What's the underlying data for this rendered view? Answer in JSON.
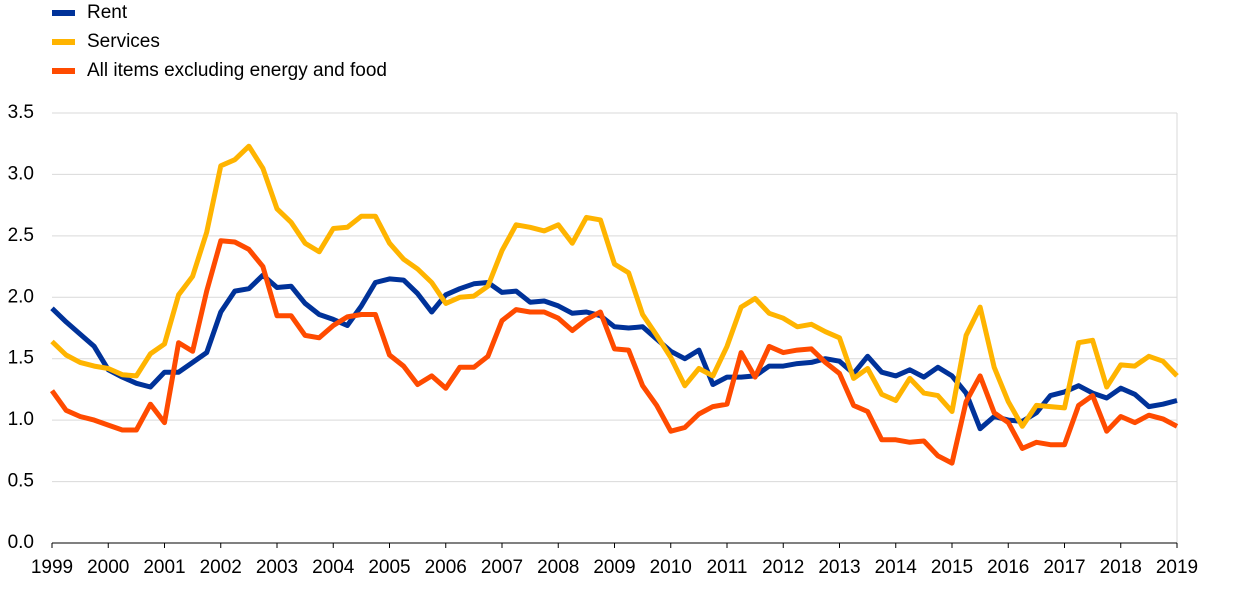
{
  "chart_data": {
    "type": "line",
    "x": [
      1999,
      1999.25,
      1999.5,
      1999.75,
      2000,
      2000.25,
      2000.5,
      2000.75,
      2001,
      2001.25,
      2001.5,
      2001.75,
      2002,
      2002.25,
      2002.5,
      2002.75,
      2003,
      2003.25,
      2003.5,
      2003.75,
      2004,
      2004.25,
      2004.5,
      2004.75,
      2005,
      2005.25,
      2005.5,
      2005.75,
      2006,
      2006.25,
      2006.5,
      2006.75,
      2007,
      2007.25,
      2007.5,
      2007.75,
      2008,
      2008.25,
      2008.5,
      2008.75,
      2009,
      2009.25,
      2009.5,
      2009.75,
      2010,
      2010.25,
      2010.5,
      2010.75,
      2011,
      2011.25,
      2011.5,
      2011.75,
      2012,
      2012.25,
      2012.5,
      2012.75,
      2013,
      2013.25,
      2013.5,
      2013.75,
      2014,
      2014.25,
      2014.5,
      2014.75,
      2015,
      2015.25,
      2015.5,
      2015.75,
      2016,
      2016.25,
      2016.5,
      2016.75,
      2017,
      2017.25,
      2017.5,
      2017.75,
      2018,
      2018.25,
      2018.5,
      2018.75,
      2019
    ],
    "series": [
      {
        "name": "Rent",
        "color": "#003299",
        "values": [
          1.91,
          1.8,
          1.7,
          1.6,
          1.41,
          1.35,
          1.3,
          1.27,
          1.39,
          1.39,
          1.47,
          1.55,
          1.88,
          2.05,
          2.07,
          2.18,
          2.08,
          2.09,
          1.95,
          1.86,
          1.82,
          1.77,
          1.93,
          2.12,
          2.15,
          2.14,
          2.03,
          1.88,
          2.02,
          2.07,
          2.11,
          2.12,
          2.04,
          2.05,
          1.96,
          1.97,
          1.93,
          1.87,
          1.88,
          1.85,
          1.76,
          1.75,
          1.76,
          1.66,
          1.56,
          1.5,
          1.57,
          1.29,
          1.35,
          1.35,
          1.36,
          1.44,
          1.44,
          1.46,
          1.47,
          1.5,
          1.48,
          1.38,
          1.52,
          1.39,
          1.36,
          1.41,
          1.35,
          1.43,
          1.36,
          1.22,
          0.93,
          1.03,
          1.0,
          0.99,
          1.06,
          1.2,
          1.23,
          1.28,
          1.22,
          1.18,
          1.26,
          1.21,
          1.11,
          1.13,
          1.16
        ]
      },
      {
        "name": "Services",
        "color": "#ffb400",
        "values": [
          1.64,
          1.53,
          1.47,
          1.44,
          1.42,
          1.37,
          1.36,
          1.54,
          1.62,
          2.02,
          2.17,
          2.53,
          3.07,
          3.12,
          3.23,
          3.05,
          2.72,
          2.61,
          2.44,
          2.37,
          2.56,
          2.57,
          2.66,
          2.66,
          2.44,
          2.31,
          2.23,
          2.12,
          1.95,
          2.0,
          2.01,
          2.09,
          2.38,
          2.59,
          2.57,
          2.54,
          2.59,
          2.44,
          2.65,
          2.63,
          2.27,
          2.2,
          1.86,
          1.69,
          1.51,
          1.28,
          1.42,
          1.36,
          1.6,
          1.92,
          1.99,
          1.87,
          1.83,
          1.76,
          1.78,
          1.72,
          1.67,
          1.34,
          1.42,
          1.21,
          1.16,
          1.34,
          1.22,
          1.2,
          1.07,
          1.69,
          1.92,
          1.43,
          1.15,
          0.95,
          1.12,
          1.11,
          1.1,
          1.63,
          1.65,
          1.27,
          1.45,
          1.44,
          1.52,
          1.48,
          1.36
        ]
      },
      {
        "name": "All items excluding energy and food",
        "color": "#ff4b00",
        "values": [
          1.24,
          1.08,
          1.03,
          1.0,
          0.96,
          0.92,
          0.92,
          1.13,
          0.98,
          1.63,
          1.56,
          2.05,
          2.46,
          2.45,
          2.39,
          2.25,
          1.85,
          1.85,
          1.69,
          1.67,
          1.77,
          1.84,
          1.86,
          1.86,
          1.53,
          1.44,
          1.29,
          1.36,
          1.26,
          1.43,
          1.43,
          1.52,
          1.81,
          1.9,
          1.88,
          1.88,
          1.83,
          1.73,
          1.82,
          1.88,
          1.58,
          1.57,
          1.28,
          1.12,
          0.91,
          0.94,
          1.05,
          1.11,
          1.13,
          1.55,
          1.35,
          1.6,
          1.55,
          1.57,
          1.58,
          1.47,
          1.38,
          1.12,
          1.07,
          0.84,
          0.84,
          0.82,
          0.83,
          0.71,
          0.65,
          1.15,
          1.36,
          1.06,
          0.98,
          0.77,
          0.82,
          0.8,
          0.8,
          1.12,
          1.2,
          0.91,
          1.03,
          0.98,
          1.04,
          1.01,
          0.95
        ]
      }
    ],
    "xlim": [
      1999,
      2019
    ],
    "xticks": [
      1999,
      2000,
      2001,
      2002,
      2003,
      2004,
      2005,
      2006,
      2007,
      2008,
      2009,
      2010,
      2011,
      2012,
      2013,
      2014,
      2015,
      2016,
      2017,
      2018,
      2019
    ],
    "ylim": [
      0,
      3.5
    ],
    "yticks": [
      {
        "value": 0,
        "label": "0.0"
      },
      0.5,
      {
        "value": 1,
        "label": "1.0"
      },
      1.5,
      {
        "value": 2,
        "label": "2.0"
      },
      2.5,
      {
        "value": 3,
        "label": "3.0"
      },
      3.5
    ],
    "grid": true,
    "legend": "top-left"
  }
}
